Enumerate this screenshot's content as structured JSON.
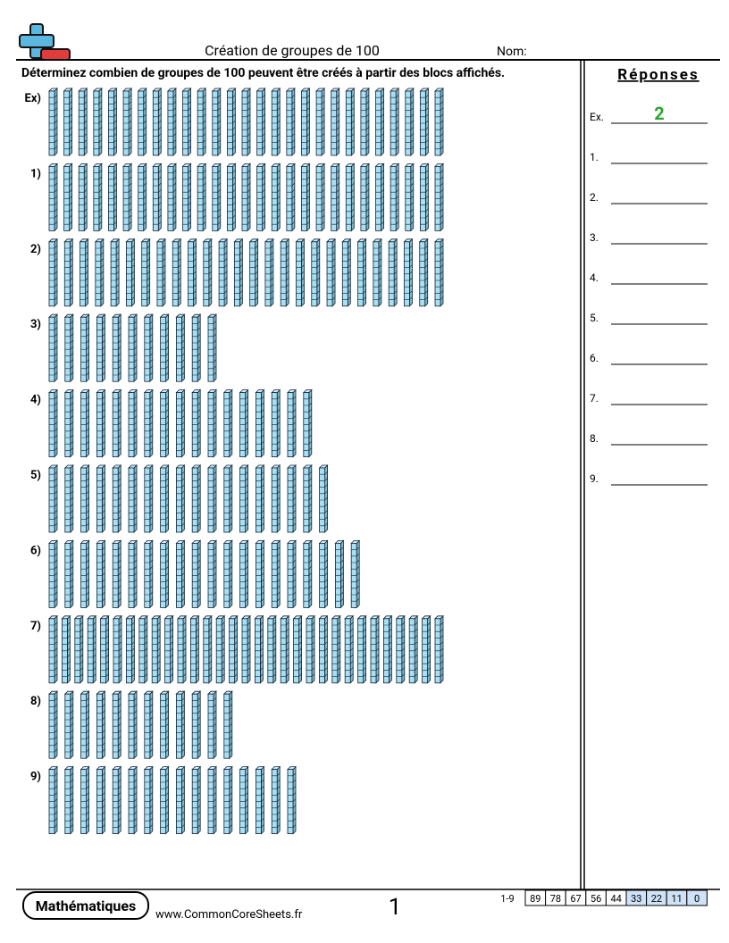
{
  "header": {
    "title": "Création de groupes de 100",
    "name_label": "Nom:"
  },
  "instructions": "Déterminez combien de groupes de 100 peuvent être créés à partir des blocs affichés.",
  "problems": [
    {
      "label": "Ex)",
      "rods": 27
    },
    {
      "label": "1)",
      "rods": 27
    },
    {
      "label": "2)",
      "rods": 26
    },
    {
      "label": "3)",
      "rods": 11
    },
    {
      "label": "4)",
      "rods": 17
    },
    {
      "label": "5)",
      "rods": 18
    },
    {
      "label": "6)",
      "rods": 20
    },
    {
      "label": "7)",
      "rods": 31
    },
    {
      "label": "8)",
      "rods": 12
    },
    {
      "label": "9)",
      "rods": 16
    }
  ],
  "answers": {
    "title": "Réponses",
    "items": [
      {
        "label": "Ex.",
        "value": "2"
      },
      {
        "label": "1."
      },
      {
        "label": "2."
      },
      {
        "label": "3."
      },
      {
        "label": "4."
      },
      {
        "label": "5."
      },
      {
        "label": "6."
      },
      {
        "label": "7."
      },
      {
        "label": "8."
      },
      {
        "label": "9."
      }
    ]
  },
  "footer": {
    "subject": "Mathématiques",
    "site": "www.CommonCoreSheets.fr",
    "page": "1",
    "score_label": "1-9",
    "scores": [
      89,
      78,
      67,
      56,
      44,
      33,
      22,
      11,
      0
    ]
  }
}
